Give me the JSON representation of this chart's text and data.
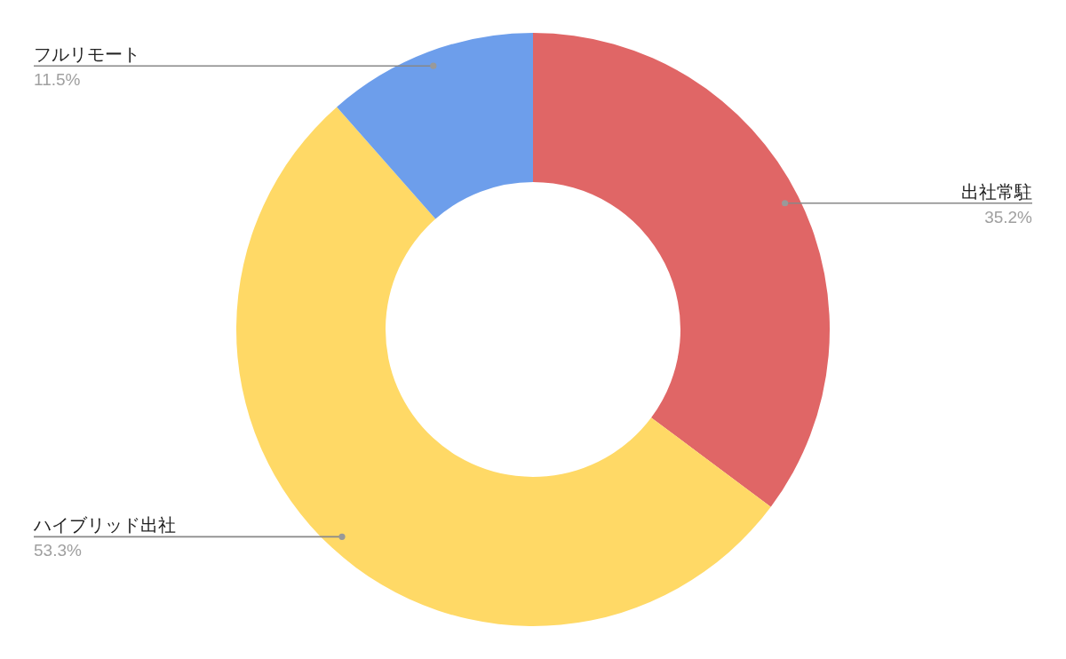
{
  "chart_data": {
    "type": "donut",
    "categories": [
      "出社常駐",
      "ハイブリッド出社",
      "フルリモート"
    ],
    "values": [
      35.2,
      53.3,
      11.5
    ],
    "value_labels": [
      "35.2%",
      "53.3%",
      "11.5%"
    ],
    "colors": [
      "#e06666",
      "#ffd966",
      "#6d9eeb"
    ]
  }
}
